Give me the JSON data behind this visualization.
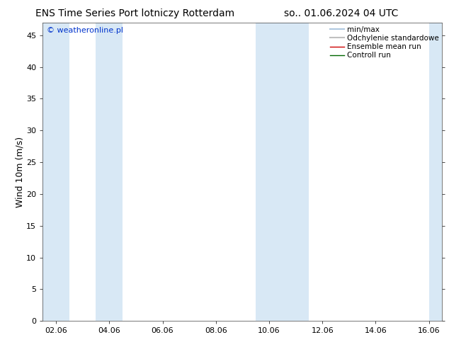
{
  "title_left": "ENS Time Series Port lotniczy Rotterdam",
  "title_right": "so.. 01.06.2024 04 UTC",
  "ylabel": "Wind 10m (m/s)",
  "watermark": "© weatheronline.pl",
  "ylim": [
    0,
    47
  ],
  "yticks": [
    0,
    5,
    10,
    15,
    20,
    25,
    30,
    35,
    40,
    45
  ],
  "x_labels": [
    "02.06",
    "04.06",
    "06.06",
    "08.06",
    "10.06",
    "12.06",
    "14.06",
    "16.06"
  ],
  "x_positions": [
    0,
    2,
    4,
    6,
    8,
    10,
    12,
    14
  ],
  "xlim": [
    -0.5,
    14.5
  ],
  "shaded_bands": [
    [
      -0.5,
      0.5
    ],
    [
      1.5,
      2.5
    ],
    [
      7.5,
      8.5
    ],
    [
      8.5,
      9.5
    ],
    [
      14.0,
      14.5
    ]
  ],
  "band_color": "#d8e8f5",
  "bg_color": "#ffffff",
  "plot_bg": "#ffffff",
  "legend_items": [
    {
      "label": "min/max",
      "color": "#b0c8e0",
      "lw": 1.5,
      "linestyle": "-"
    },
    {
      "label": "Odchylenie standardowe",
      "color": "#c0c0c0",
      "lw": 1.5,
      "linestyle": "-"
    },
    {
      "label": "Ensemble mean run",
      "color": "#cc0000",
      "lw": 1.0,
      "linestyle": "-"
    },
    {
      "label": "Controll run",
      "color": "#006600",
      "lw": 1.0,
      "linestyle": "-"
    }
  ],
  "title_fontsize": 10,
  "tick_fontsize": 8,
  "ylabel_fontsize": 9,
  "watermark_color": "#0033cc",
  "watermark_fontsize": 8,
  "legend_fontsize": 7.5
}
